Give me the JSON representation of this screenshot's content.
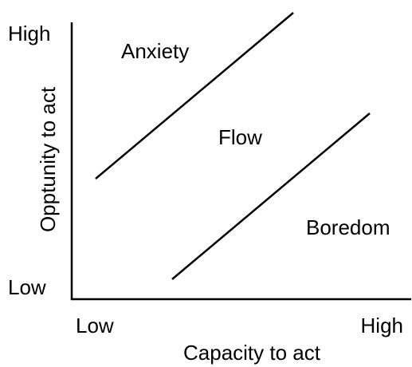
{
  "y_axis": {
    "label": "Opptunity to act",
    "high": "High",
    "low": "Low"
  },
  "x_axis": {
    "label": "Capacity to act",
    "low": "Low",
    "high": "High"
  },
  "regions": {
    "top": "Anxiety",
    "middle": "Flow",
    "bottom": "Boredom"
  }
}
